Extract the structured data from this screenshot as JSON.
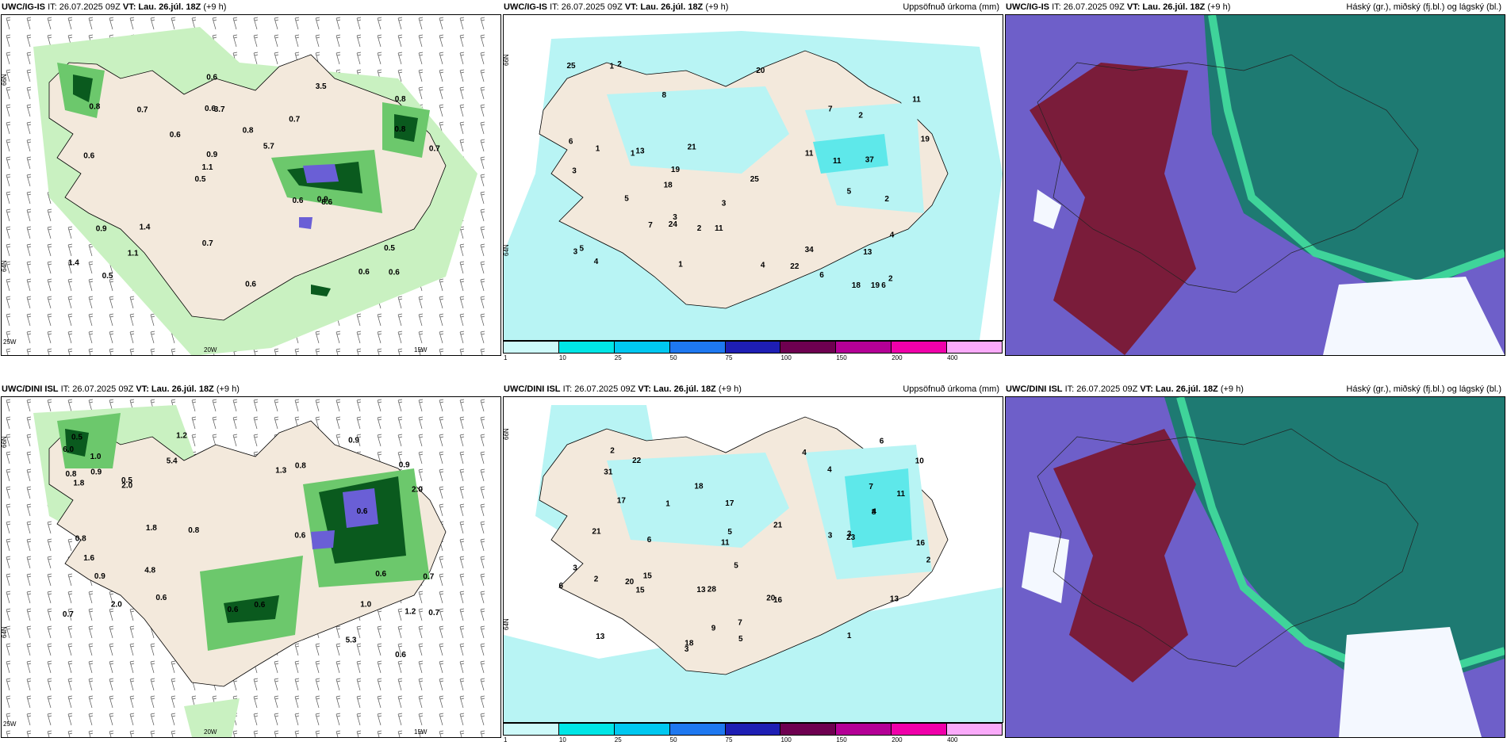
{
  "rows": [
    {
      "model": "UWC/IG-IS",
      "init": "IT: 26.07.2025 09Z",
      "vt_label": "VT:",
      "vt_value": "Lau. 26.júl. 18Z",
      "lead": "(+9 h)",
      "wind_labels": [
        "0.6",
        "0.6",
        "0.8",
        "0.5",
        "0.7",
        "0.5",
        "0.6",
        "0.8",
        "0.9",
        "0.6",
        "1.4",
        "1.1",
        "3.7",
        "5.7",
        "8.6",
        "0.8",
        "0.6",
        "0.7",
        "0.6",
        "0.8",
        "1.1",
        "0.7",
        "0.9",
        "0.7",
        "3.5",
        "1.4",
        "0.6",
        "0.5",
        "0.9",
        "0.6"
      ],
      "precip_labels": [
        "3",
        "1",
        "1",
        "5",
        "6",
        "8",
        "11",
        "18",
        "24",
        "11",
        "37",
        "20",
        "25",
        "18",
        "19",
        "34",
        "25",
        "19",
        "11",
        "21",
        "19",
        "13",
        "22",
        "7",
        "13",
        "11",
        "4",
        "5",
        "2",
        "3",
        "3",
        "2",
        "4",
        "4",
        "7",
        "6",
        "1",
        "2",
        "5",
        "1",
        "3",
        "2",
        "2",
        "6"
      ]
    },
    {
      "model": "UWC/DINI ISL",
      "init": "IT: 26.07.2025 09Z",
      "vt_label": "VT:",
      "vt_value": "Lau. 26.júl. 18Z",
      "lead": "(+9 h)",
      "wind_labels": [
        "1.0",
        "0.8",
        "0.6",
        "0.7",
        "0.8",
        "0.5",
        "0.6",
        "0.7",
        "1.2",
        "0.5",
        "0.6",
        "1.0",
        "1.6",
        "0.8",
        "0.6",
        "5.4",
        "6.0",
        "5.3",
        "2.0",
        "0.9",
        "0.6",
        "1.8",
        "0.7",
        "1.3",
        "1.8",
        "2.0",
        "2.0",
        "0.9",
        "0.8",
        "0.9",
        "1.2",
        "0.6",
        "4.8",
        "0.9",
        "0.6"
      ],
      "precip_labels": [
        "3",
        "1",
        "3",
        "5",
        "7",
        "18",
        "11",
        "20",
        "28",
        "16",
        "15",
        "22",
        "18",
        "11",
        "13",
        "10",
        "16",
        "17",
        "21",
        "21",
        "20",
        "31",
        "15",
        "23",
        "13",
        "13",
        "9",
        "17",
        "6",
        "7",
        "4",
        "5",
        "3",
        "4",
        "2",
        "1",
        "2",
        "3",
        "6",
        "5",
        "4",
        "8",
        "2",
        "6"
      ]
    }
  ],
  "precip_title": "Uppsöfnuð úrkoma (mm)",
  "cloud_title": "Háský (gr.), miðský (fj.bl.) og lágský (bl.)",
  "axis": {
    "lat_a": "66N",
    "lat_b": "64N",
    "lon_a": "20W",
    "lon_b": "15W",
    "lon_c": "25W"
  },
  "colorbar": {
    "ticks": [
      "1",
      "10",
      "25",
      "50",
      "75",
      "100",
      "150",
      "200",
      "400"
    ],
    "colors": [
      "#cdfafa",
      "#00e6e6",
      "#00c8f0",
      "#1e78f0",
      "#1e1eb4",
      "#6e0050",
      "#b40096",
      "#f000aa",
      "#faaafa"
    ]
  },
  "colors": {
    "land": "#f3e9dc",
    "light_green": "#c9f1c1",
    "green": "#6cc86c",
    "dark_green": "#0a5a1e",
    "blue_purple": "#6a5fd6",
    "precip_light": "#b8f4f4",
    "precip_mid": "#5ee8ea",
    "cloud_purple": "#6e5fc9",
    "cloud_maroon": "#7a1c3a",
    "cloud_teal": "#1e7a72",
    "cloud_green": "#3fd49a",
    "cloud_white": "#f4f8ff"
  }
}
